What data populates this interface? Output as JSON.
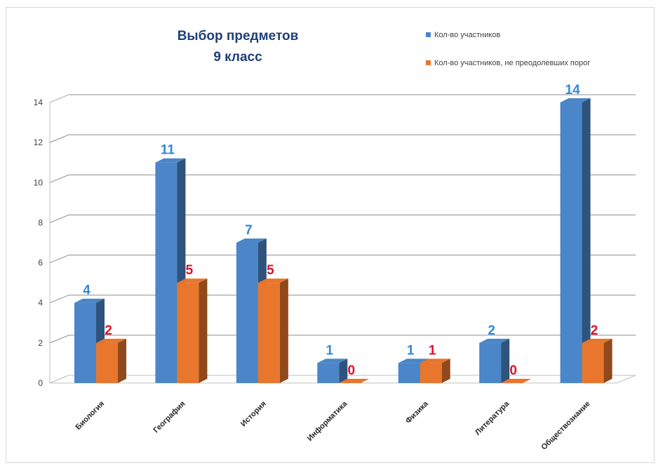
{
  "chart_data": {
    "type": "bar",
    "title": "Выбор предметов",
    "subtitle": "9 класс",
    "categories": [
      "Биология",
      "География",
      "История",
      "Информатика",
      "Физика",
      "Литература",
      "Обществознание"
    ],
    "series": [
      {
        "name": "Кол-во участников",
        "values": [
          4,
          11,
          7,
          1,
          1,
          2,
          14
        ],
        "color": "#4a86c8",
        "label_color": "#2e8ad8"
      },
      {
        "name": "Кол-во участников, не преодолевших порог",
        "values": [
          2,
          5,
          5,
          0,
          1,
          0,
          2
        ],
        "color": "#e8762c",
        "label_color": "#e0102a"
      }
    ],
    "ylim": [
      0,
      14
    ],
    "yticks": [
      0,
      2,
      4,
      6,
      8,
      10,
      12,
      14
    ],
    "grid": true,
    "legend_position": "top-right",
    "style": "3d-clustered-column"
  }
}
